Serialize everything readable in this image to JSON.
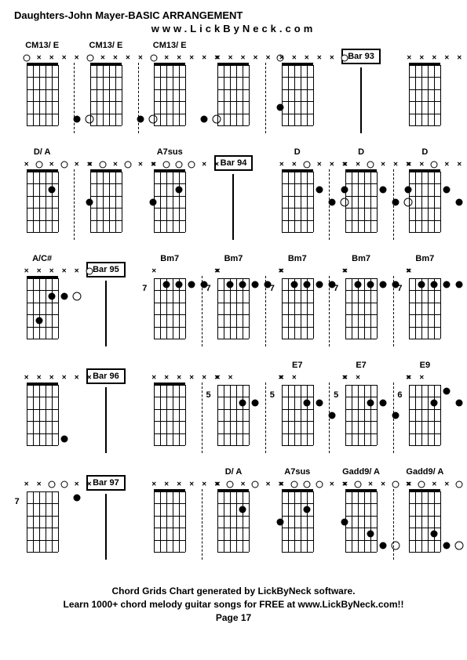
{
  "header": {
    "title": "Daughters-John Mayer-BASIC ARRANGEMENT",
    "subtitle": "www.LickByNeck.com"
  },
  "footer": {
    "line1": "Chord Grids Chart generated by LickByNeck software.",
    "line2": "Learn 1000+ chord melody guitar songs for FREE at www.LickByNeck.com!!",
    "line3": "Page 17"
  },
  "colors": {
    "background": "#ffffff",
    "foreground": "#000000"
  },
  "layout": {
    "cols": 7,
    "rows": 5,
    "string_positions_pct": [
      0,
      20,
      40,
      60,
      80,
      100
    ],
    "fret_positions_pct": [
      0,
      20,
      40,
      60,
      80,
      100
    ]
  },
  "cells": [
    {
      "type": "chord",
      "name": "CM13/ E",
      "top": [
        "o",
        "x",
        "x",
        "x",
        "x",
        "x"
      ],
      "dots": [
        [
          5,
          5
        ]
      ],
      "whiteDots": [
        [
          5,
          6
        ]
      ],
      "fretLabel": "",
      "dashed": true
    },
    {
      "type": "chord",
      "name": "CM13/ E",
      "top": [
        "o",
        "x",
        "x",
        "x",
        "x",
        "x"
      ],
      "dots": [
        [
          5,
          5
        ]
      ],
      "whiteDots": [
        [
          5,
          6
        ]
      ],
      "fretLabel": "",
      "dashed": true
    },
    {
      "type": "chord",
      "name": "CM13/ E",
      "top": [
        "o",
        "x",
        "x",
        "x",
        "x",
        "x"
      ],
      "dots": [
        [
          5,
          5
        ]
      ],
      "whiteDots": [
        [
          5,
          6
        ]
      ],
      "fretLabel": "",
      "dashed": false
    },
    {
      "type": "chord",
      "name": "",
      "top": [
        "x",
        "x",
        "x",
        "x",
        "x",
        "o"
      ],
      "dots": [
        [
          4,
          6
        ]
      ],
      "whiteDots": [],
      "fretLabel": "",
      "dashed": true
    },
    {
      "type": "chord",
      "name": "",
      "top": [
        "x",
        "x",
        "x",
        "x",
        "x",
        "o"
      ],
      "dots": [],
      "whiteDots": [],
      "fretLabel": "",
      "dashed": false
    },
    {
      "type": "bar",
      "label": "Bar 93"
    },
    {
      "type": "chord",
      "name": "",
      "top": [
        "x",
        "x",
        "x",
        "x",
        "x",
        "x"
      ],
      "dots": [],
      "whiteDots": [],
      "fretLabel": "",
      "dashed": false
    },
    {
      "type": "chord",
      "name": "D/ A",
      "top": [
        "x",
        "o",
        "x",
        "o",
        "x",
        "x"
      ],
      "dots": [
        [
          2,
          3
        ],
        [
          3,
          6
        ]
      ],
      "whiteDots": [],
      "fretLabel": "",
      "dashed": true
    },
    {
      "type": "chord",
      "name": "",
      "top": [
        "x",
        "o",
        "x",
        "o",
        "x",
        "x"
      ],
      "dots": [
        [
          3,
          6
        ]
      ],
      "whiteDots": [],
      "fretLabel": "",
      "dashed": false
    },
    {
      "type": "chord",
      "name": "A7sus",
      "top": [
        "x",
        "o",
        "o",
        "o",
        "x",
        "x"
      ],
      "dots": [
        [
          2,
          3
        ]
      ],
      "whiteDots": [],
      "fretLabel": "",
      "dashed": false
    },
    {
      "type": "bar",
      "label": "Bar 94"
    },
    {
      "type": "chord",
      "name": "D",
      "top": [
        "x",
        "x",
        "o",
        "x",
        "x",
        "x"
      ],
      "dots": [
        [
          2,
          4
        ],
        [
          3,
          5
        ],
        [
          2,
          6
        ]
      ],
      "whiteDots": [
        [
          3,
          6
        ]
      ],
      "fretLabel": "",
      "dashed": true
    },
    {
      "type": "chord",
      "name": "D",
      "top": [
        "x",
        "x",
        "o",
        "x",
        "x",
        "x"
      ],
      "dots": [
        [
          2,
          4
        ],
        [
          3,
          5
        ],
        [
          2,
          6
        ]
      ],
      "whiteDots": [
        [
          3,
          6
        ]
      ],
      "fretLabel": "",
      "dashed": true
    },
    {
      "type": "chord",
      "name": "D",
      "top": [
        "x",
        "x",
        "o",
        "x",
        "x",
        "x"
      ],
      "dots": [
        [
          2,
          4
        ],
        [
          3,
          5
        ],
        [
          2,
          6
        ]
      ],
      "whiteDots": [],
      "fretLabel": "",
      "dashed": false
    },
    {
      "type": "chord",
      "name": "A/C#",
      "top": [
        "x",
        "x",
        "x",
        "x",
        "x",
        "o"
      ],
      "dots": [
        [
          4,
          2
        ],
        [
          2,
          3
        ],
        [
          2,
          4
        ]
      ],
      "whiteDots": [
        [
          2,
          5
        ]
      ],
      "fretLabel": "",
      "dashed": false
    },
    {
      "type": "bar",
      "label": "Bar 95"
    },
    {
      "type": "chord",
      "name": "Bm7",
      "top": [
        "x",
        "",
        "",
        "",
        "",
        "x"
      ],
      "dots": [
        [
          1,
          2
        ],
        [
          1,
          3
        ],
        [
          1,
          4
        ],
        [
          1,
          5
        ]
      ],
      "whiteDots": [],
      "fretLabel": "7",
      "dashed": true
    },
    {
      "type": "chord",
      "name": "Bm7",
      "top": [
        "x",
        "",
        "",
        "",
        "",
        "x"
      ],
      "dots": [
        [
          1,
          2
        ],
        [
          1,
          3
        ],
        [
          1,
          4
        ],
        [
          1,
          5
        ]
      ],
      "whiteDots": [],
      "fretLabel": "7",
      "dashed": true
    },
    {
      "type": "chord",
      "name": "Bm7",
      "top": [
        "x",
        "",
        "",
        "",
        "",
        "x"
      ],
      "dots": [
        [
          1,
          2
        ],
        [
          1,
          3
        ],
        [
          1,
          4
        ],
        [
          1,
          5
        ]
      ],
      "whiteDots": [],
      "fretLabel": "7",
      "dashed": true
    },
    {
      "type": "chord",
      "name": "Bm7",
      "top": [
        "x",
        "",
        "",
        "",
        "",
        "x"
      ],
      "dots": [
        [
          1,
          2
        ],
        [
          1,
          3
        ],
        [
          1,
          4
        ],
        [
          1,
          5
        ]
      ],
      "whiteDots": [],
      "fretLabel": "7",
      "dashed": true
    },
    {
      "type": "chord",
      "name": "Bm7",
      "top": [
        "x",
        "",
        "",
        "",
        "",
        "x"
      ],
      "dots": [
        [
          1,
          2
        ],
        [
          1,
          3
        ],
        [
          1,
          4
        ],
        [
          1,
          5
        ]
      ],
      "whiteDots": [],
      "fretLabel": "7",
      "dashed": false
    },
    {
      "type": "chord",
      "name": "",
      "top": [
        "x",
        "x",
        "x",
        "x",
        "x",
        "x"
      ],
      "dots": [
        [
          5,
          4
        ]
      ],
      "whiteDots": [],
      "fretLabel": "",
      "dashed": false
    },
    {
      "type": "bar",
      "label": "Bar 96"
    },
    {
      "type": "chord",
      "name": "",
      "top": [
        "x",
        "x",
        "x",
        "x",
        "x",
        "x"
      ],
      "dots": [],
      "whiteDots": [],
      "fretLabel": "",
      "dashed": true
    },
    {
      "type": "chord",
      "name": "",
      "top": [
        "x",
        "x",
        "",
        "",
        "",
        "x"
      ],
      "dots": [
        [
          2,
          3
        ],
        [
          2,
          4
        ]
      ],
      "whiteDots": [],
      "fretLabel": "5",
      "dashed": true
    },
    {
      "type": "chord",
      "name": "E7",
      "top": [
        "x",
        "x",
        "",
        "",
        "",
        "x"
      ],
      "dots": [
        [
          2,
          3
        ],
        [
          2,
          4
        ],
        [
          3,
          5
        ]
      ],
      "whiteDots": [],
      "fretLabel": "5",
      "dashed": true
    },
    {
      "type": "chord",
      "name": "E7",
      "top": [
        "x",
        "x",
        "",
        "",
        "",
        "x"
      ],
      "dots": [
        [
          2,
          3
        ],
        [
          2,
          4
        ],
        [
          3,
          5
        ]
      ],
      "whiteDots": [],
      "fretLabel": "5",
      "dashed": true
    },
    {
      "type": "chord",
      "name": "E9",
      "top": [
        "x",
        "x",
        "",
        "",
        "",
        "x"
      ],
      "dots": [
        [
          2,
          3
        ],
        [
          1,
          4
        ],
        [
          2,
          5
        ]
      ],
      "whiteDots": [],
      "fretLabel": "6",
      "dashed": false
    },
    {
      "type": "chord",
      "name": "",
      "top": [
        "x",
        "x",
        "o",
        "o",
        "x",
        "x"
      ],
      "dots": [
        [
          1,
          5
        ]
      ],
      "whiteDots": [],
      "fretLabel": "7",
      "dashed": false
    },
    {
      "type": "bar",
      "label": "Bar 97"
    },
    {
      "type": "chord",
      "name": "",
      "top": [
        "x",
        "x",
        "x",
        "x",
        "x",
        "x"
      ],
      "dots": [],
      "whiteDots": [],
      "fretLabel": "",
      "dashed": true
    },
    {
      "type": "chord",
      "name": "D/ A",
      "top": [
        "x",
        "o",
        "x",
        "o",
        "x",
        "x"
      ],
      "dots": [
        [
          2,
          3
        ],
        [
          3,
          6
        ]
      ],
      "whiteDots": [],
      "fretLabel": "",
      "dashed": false
    },
    {
      "type": "chord",
      "name": "A7sus",
      "top": [
        "x",
        "o",
        "o",
        "o",
        "x",
        "x"
      ],
      "dots": [
        [
          2,
          3
        ],
        [
          3,
          6
        ]
      ],
      "whiteDots": [],
      "fretLabel": "",
      "dashed": false
    },
    {
      "type": "chord",
      "name": "Gadd9/ A",
      "top": [
        "x",
        "o",
        "x",
        "x",
        "o",
        "x"
      ],
      "dots": [
        [
          4,
          3
        ],
        [
          5,
          4
        ]
      ],
      "whiteDots": [
        [
          5,
          5
        ]
      ],
      "fretLabel": "",
      "dashed": true
    },
    {
      "type": "chord",
      "name": "Gadd9/ A",
      "top": [
        "x",
        "o",
        "x",
        "x",
        "o",
        "x"
      ],
      "dots": [
        [
          4,
          3
        ],
        [
          5,
          4
        ]
      ],
      "whiteDots": [
        [
          5,
          5
        ]
      ],
      "fretLabel": "",
      "dashed": false
    }
  ]
}
